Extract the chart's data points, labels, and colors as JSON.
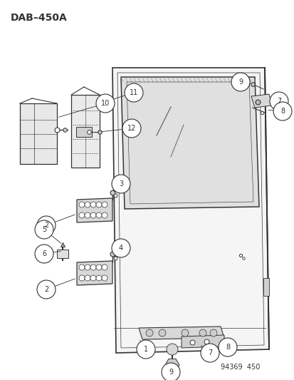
{
  "title": "DAB–450A",
  "footer": "94369  450",
  "bg_color": "#ffffff",
  "lc": "#333333",
  "title_fontsize": 10,
  "callout_r": 0.018,
  "callout_fontsize": 7,
  "footer_fontsize": 7
}
